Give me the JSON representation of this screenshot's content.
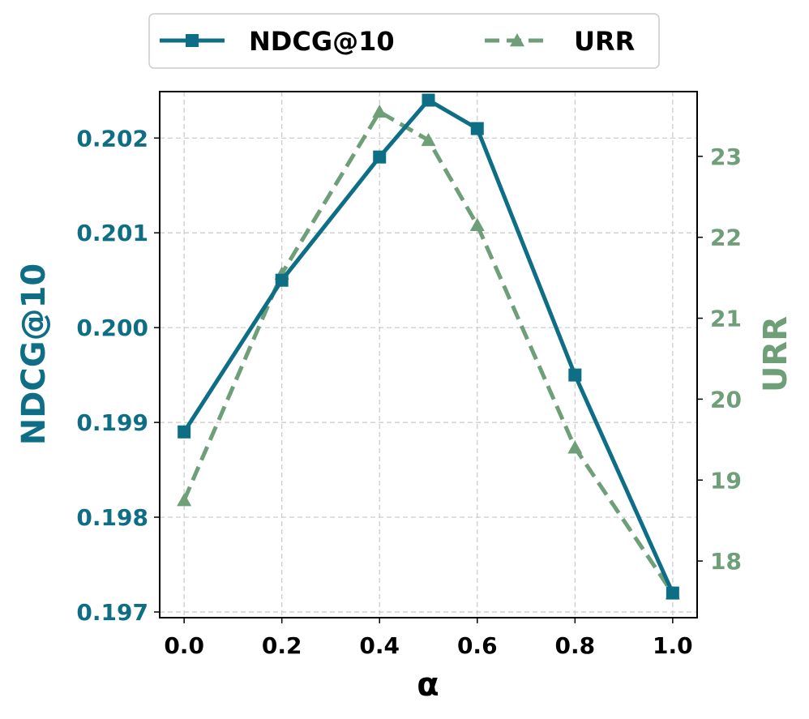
{
  "chart_data": {
    "type": "line",
    "xlabel": "α",
    "ylabel_left": "NDCG@10",
    "ylabel_right": "URR",
    "x": [
      0.0,
      0.2,
      0.4,
      0.5,
      0.6,
      0.8,
      1.0
    ],
    "xticks": [
      "0.0",
      "0.2",
      "0.4",
      "0.6",
      "0.8",
      "1.0"
    ],
    "xlim": [
      -0.05,
      1.05
    ],
    "yticks_left": [
      "0.197",
      "0.198",
      "0.199",
      "0.200",
      "0.201",
      "0.202"
    ],
    "ylim_left": [
      0.19694,
      0.20249
    ],
    "yticks_right": [
      "18",
      "19",
      "20",
      "21",
      "22",
      "23"
    ],
    "ylim_right": [
      17.3,
      23.8
    ],
    "grid": true,
    "legend_position": "top-center",
    "series": [
      {
        "name": "NDCG@10",
        "axis": "left",
        "color": "#0e6e85",
        "marker": "square",
        "line_style": "solid",
        "values": [
          0.1989,
          0.2005,
          0.2018,
          0.2024,
          0.2021,
          0.1995,
          0.1972
        ]
      },
      {
        "name": "URR",
        "axis": "right",
        "color": "#6e9f78",
        "marker": "triangle",
        "line_style": "dashed",
        "values": [
          18.75,
          21.55,
          23.55,
          23.2,
          22.15,
          19.4,
          17.6
        ]
      }
    ]
  }
}
